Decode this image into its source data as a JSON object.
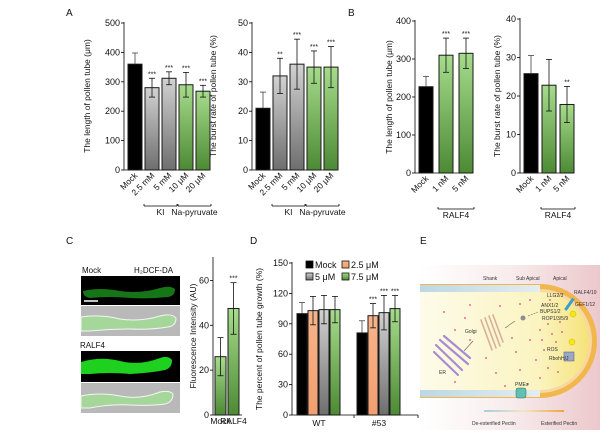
{
  "panels": {
    "A": "A",
    "B": "B",
    "C": "C",
    "D": "D",
    "E": "E"
  },
  "colors": {
    "mock": "#000000",
    "ki_gray": "#b0b0b0",
    "green": "#7ec46a",
    "orange": "#f5a97a",
    "bar_outline": "#1a1a1a"
  },
  "chart_data": [
    {
      "id": "A1",
      "type": "bar",
      "panel": "A",
      "ylabel": "The length of pollen tube (μm)",
      "ylim": [
        0,
        500
      ],
      "yticks": [
        0,
        100,
        200,
        300,
        400,
        500
      ],
      "categories": [
        "Mock",
        "2.5 mM",
        "5 mM",
        "10 μM",
        "20 μM"
      ],
      "values": [
        360,
        280,
        312,
        290,
        268
      ],
      "errors": [
        38,
        32,
        22,
        42,
        20
      ],
      "significance": [
        "",
        "***",
        "***",
        "***",
        "***"
      ],
      "fills": [
        "mock",
        "gray",
        "gray",
        "green",
        "green"
      ],
      "groups": [
        {
          "label": "KI",
          "from": 1,
          "to": 2
        },
        {
          "label": "Na-pyruvate",
          "from": 3,
          "to": 4
        }
      ]
    },
    {
      "id": "A2",
      "type": "bar",
      "panel": "A",
      "ylabel": "The burst rate of pollen tube (%)",
      "ylim": [
        0,
        50
      ],
      "yticks": [
        0,
        10,
        20,
        30,
        40,
        50
      ],
      "categories": [
        "Mock",
        "2.5 mM",
        "5 mM",
        "10 μM",
        "20 μM"
      ],
      "values": [
        21,
        32,
        36,
        35,
        35
      ],
      "errors": [
        5.5,
        6,
        8.5,
        5.5,
        7
      ],
      "significance": [
        "",
        "**",
        "***",
        "***",
        "***"
      ],
      "fills": [
        "mock",
        "gray",
        "gray",
        "green",
        "green"
      ],
      "groups": [
        {
          "label": "KI",
          "from": 1,
          "to": 2
        },
        {
          "label": "Na-pyruvate",
          "from": 3,
          "to": 4
        }
      ]
    },
    {
      "id": "B1",
      "type": "bar",
      "panel": "B",
      "ylabel": "The length of pollen tube (μm)",
      "ylim": [
        0,
        400
      ],
      "yticks": [
        0,
        100,
        200,
        300,
        400
      ],
      "categories": [
        "Mock",
        "1 nM",
        "5 nM"
      ],
      "values": [
        227,
        310,
        315
      ],
      "errors": [
        27,
        45,
        40
      ],
      "significance": [
        "",
        "***",
        "***"
      ],
      "fills": [
        "mock",
        "green",
        "green"
      ],
      "groups": [
        {
          "label": "RALF4",
          "from": 1,
          "to": 2
        }
      ]
    },
    {
      "id": "B2",
      "type": "bar",
      "panel": "B",
      "ylabel": "The burst rate of pollen tube (%)",
      "ylim": [
        0,
        40
      ],
      "yticks": [
        0,
        10,
        20,
        30,
        40
      ],
      "categories": [
        "Mock",
        "1 nM",
        "5 nM"
      ],
      "values": [
        25.8,
        22.8,
        17.8
      ],
      "errors": [
        4.7,
        6.7,
        4.7
      ],
      "significance": [
        "",
        "",
        "**"
      ],
      "fills": [
        "mock",
        "green",
        "green"
      ],
      "groups": [
        {
          "label": "RALF4",
          "from": 1,
          "to": 2
        }
      ]
    },
    {
      "id": "C",
      "type": "bar",
      "panel": "C",
      "ylabel": "Fluorescence Intensity (AU)",
      "ylim": [
        0,
        70
      ],
      "yticks": [
        0,
        20,
        40,
        60
      ],
      "categories": [
        "Mock",
        "RALF4"
      ],
      "values": [
        26,
        47.5
      ],
      "errors": [
        8.5,
        11.5
      ],
      "significance": [
        "",
        "***"
      ],
      "fills": [
        "green",
        "green"
      ]
    },
    {
      "id": "D",
      "type": "bar",
      "panel": "D",
      "ylabel": "The percent of pollen tube growth (%)",
      "ylim": [
        0,
        150
      ],
      "yticks": [
        0,
        30,
        60,
        90,
        120,
        150
      ],
      "categories": [
        "WT",
        "#53"
      ],
      "series": [
        {
          "name": "Mock",
          "fill": "mock",
          "values": [
            100,
            81
          ],
          "errors": [
            11,
            12
          ],
          "significance": [
            "",
            ""
          ]
        },
        {
          "name": "2.5 μM",
          "fill": "orange",
          "values": [
            103,
            98
          ],
          "errors": [
            14,
            12
          ],
          "significance": [
            "",
            "***"
          ]
        },
        {
          "name": "5 μM",
          "fill": "gray",
          "values": [
            104,
            101
          ],
          "errors": [
            14,
            17
          ],
          "significance": [
            "",
            "***"
          ]
        },
        {
          "name": "7.5 μM",
          "fill": "green",
          "values": [
            104,
            105
          ],
          "errors": [
            13,
            13
          ],
          "significance": [
            "",
            "***"
          ]
        }
      ],
      "legend": "top"
    }
  ],
  "panelC_images": {
    "top_label_left": "Mock",
    "top_label_right": "H₂DCF-DA",
    "bottom_label": "RALF4"
  },
  "panelE": {
    "regions": [
      "Shank",
      "Sub Apical",
      "Apical"
    ],
    "labels": {
      "golgi": "Golgi",
      "er": "ER",
      "lluer": "LLG2/3",
      "ralf": "RALF4/19",
      "anx": "ANX1/2",
      "bups": "BUPS1/2",
      "gef": "GEF1/12",
      "rop": "ROP1/3/5/9",
      "ros": "ROS",
      "rboh": "RbohH/J",
      "pmes": "PMEs",
      "de": "De-esterified Pectin",
      "es": "Esterified Pectin"
    }
  }
}
